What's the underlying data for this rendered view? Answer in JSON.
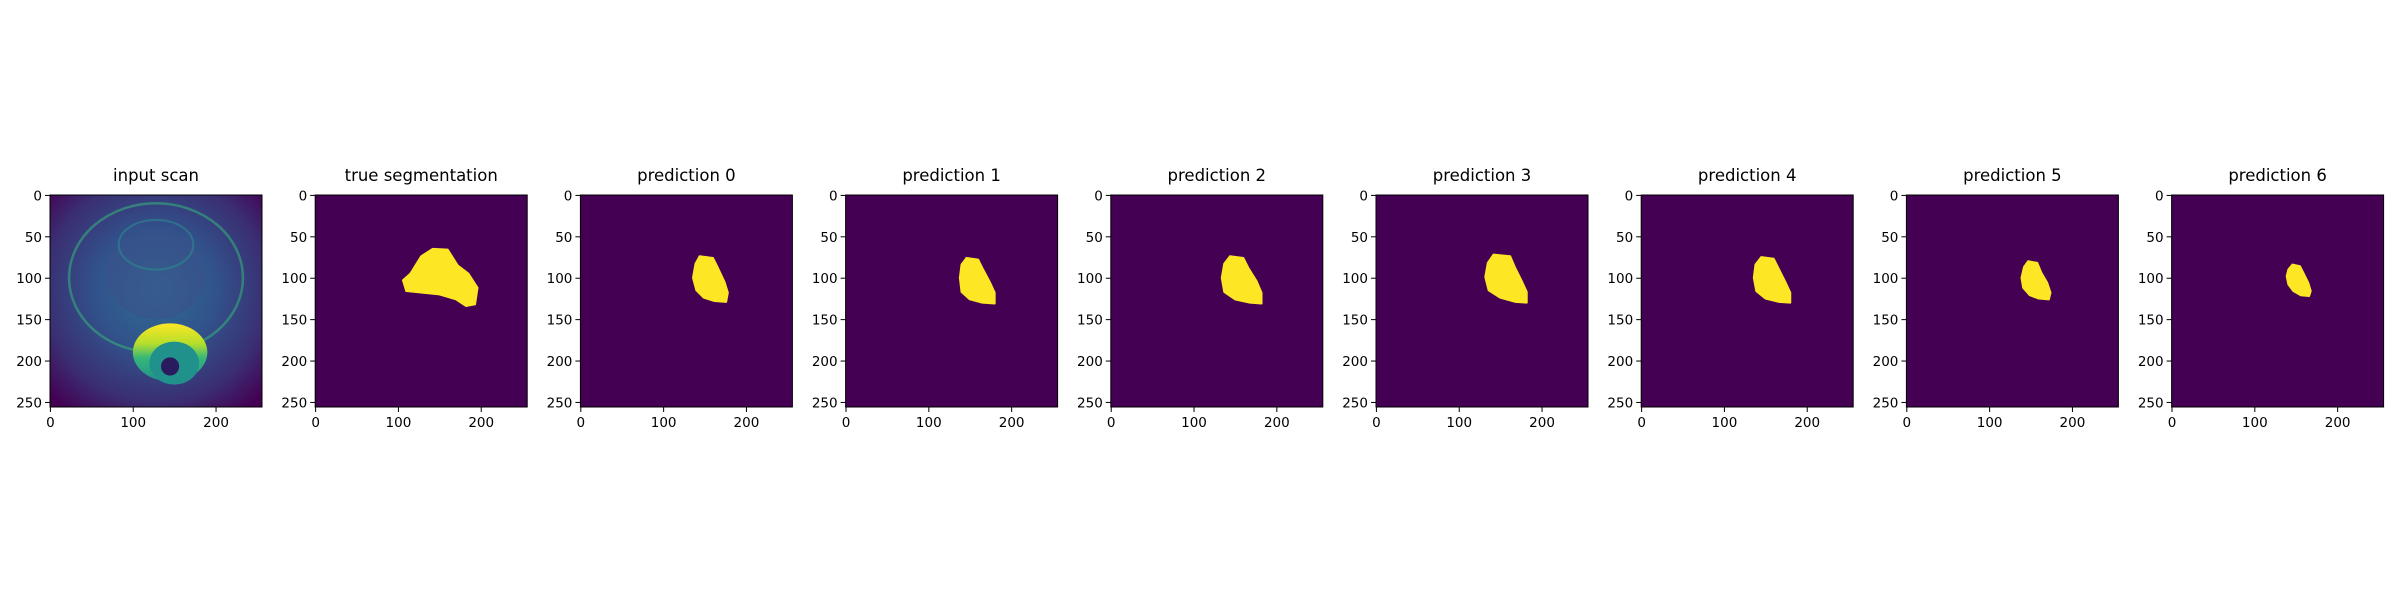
{
  "chart_data": {
    "type": "heatmap",
    "colormap": "viridis",
    "colors": {
      "background": "#440154",
      "foreground": "#fde725"
    },
    "image_shape": [
      256,
      256
    ],
    "xlim": [
      0,
      255
    ],
    "ylim": [
      255,
      0
    ],
    "x_ticks": [
      0,
      100,
      200
    ],
    "y_ticks": [
      0,
      50,
      100,
      150,
      200,
      250
    ],
    "panels": [
      {
        "title": "input scan",
        "kind": "scan",
        "overlay": {
          "center": [
            145,
            190
          ],
          "rx": 45,
          "ry": 35
        }
      },
      {
        "title": "true segmentation",
        "kind": "mask",
        "outline": [
          [
            142,
            65
          ],
          [
            160,
            66
          ],
          [
            172,
            85
          ],
          [
            185,
            95
          ],
          [
            196,
            112
          ],
          [
            193,
            132
          ],
          [
            182,
            134
          ],
          [
            170,
            126
          ],
          [
            150,
            120
          ],
          [
            110,
            116
          ],
          [
            106,
            103
          ],
          [
            115,
            95
          ],
          [
            128,
            74
          ]
        ]
      },
      {
        "title": "prediction 0",
        "kind": "mask",
        "outline": [
          [
            144,
            74
          ],
          [
            160,
            76
          ],
          [
            166,
            88
          ],
          [
            174,
            105
          ],
          [
            178,
            118
          ],
          [
            176,
            129
          ],
          [
            162,
            128
          ],
          [
            149,
            124
          ],
          [
            140,
            115
          ],
          [
            136,
            100
          ],
          [
            139,
            83
          ]
        ]
      },
      {
        "title": "prediction 1",
        "kind": "mask",
        "outline": [
          [
            146,
            76
          ],
          [
            160,
            78
          ],
          [
            166,
            90
          ],
          [
            174,
            105
          ],
          [
            180,
            118
          ],
          [
            180,
            131
          ],
          [
            165,
            130
          ],
          [
            150,
            126
          ],
          [
            140,
            117
          ],
          [
            138,
            100
          ],
          [
            140,
            84
          ]
        ]
      },
      {
        "title": "prediction 2",
        "kind": "mask",
        "outline": [
          [
            144,
            74
          ],
          [
            160,
            76
          ],
          [
            166,
            88
          ],
          [
            176,
            104
          ],
          [
            182,
            118
          ],
          [
            182,
            131
          ],
          [
            168,
            130
          ],
          [
            150,
            126
          ],
          [
            137,
            117
          ],
          [
            134,
            100
          ],
          [
            137,
            83
          ]
        ]
      },
      {
        "title": "prediction 3",
        "kind": "mask",
        "outline": [
          [
            142,
            72
          ],
          [
            162,
            74
          ],
          [
            168,
            88
          ],
          [
            176,
            104
          ],
          [
            182,
            117
          ],
          [
            182,
            130
          ],
          [
            168,
            129
          ],
          [
            150,
            124
          ],
          [
            136,
            115
          ],
          [
            132,
            99
          ],
          [
            135,
            82
          ]
        ]
      },
      {
        "title": "prediction 4",
        "kind": "mask",
        "outline": [
          [
            145,
            75
          ],
          [
            160,
            77
          ],
          [
            166,
            89
          ],
          [
            174,
            105
          ],
          [
            180,
            118
          ],
          [
            180,
            130
          ],
          [
            166,
            129
          ],
          [
            150,
            125
          ],
          [
            139,
            116
          ],
          [
            136,
            100
          ],
          [
            138,
            84
          ]
        ]
      },
      {
        "title": "prediction 5",
        "kind": "mask",
        "outline": [
          [
            147,
            80
          ],
          [
            158,
            82
          ],
          [
            163,
            94
          ],
          [
            170,
            106
          ],
          [
            174,
            118
          ],
          [
            172,
            126
          ],
          [
            160,
            125
          ],
          [
            149,
            121
          ],
          [
            141,
            112
          ],
          [
            139,
            100
          ],
          [
            142,
            87
          ]
        ]
      },
      {
        "title": "prediction 6",
        "kind": "mask",
        "outline": [
          [
            146,
            84
          ],
          [
            155,
            86
          ],
          [
            160,
            96
          ],
          [
            165,
            106
          ],
          [
            168,
            116
          ],
          [
            166,
            122
          ],
          [
            156,
            121
          ],
          [
            147,
            116
          ],
          [
            141,
            108
          ],
          [
            139,
            98
          ],
          [
            141,
            90
          ]
        ]
      }
    ]
  }
}
